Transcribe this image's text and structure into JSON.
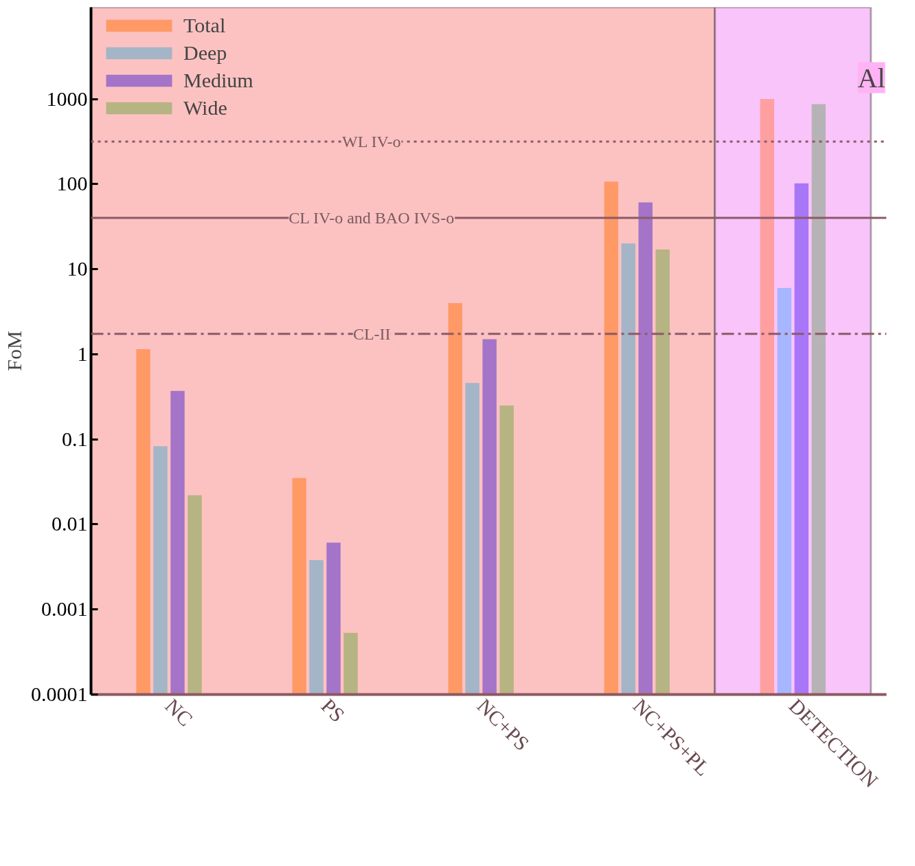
{
  "chart_data": {
    "type": "bar",
    "ylabel": "FoM",
    "categories": [
      "NC",
      "PS",
      "NC+PS",
      "NC+PS+PL",
      "DETECTION"
    ],
    "series": [
      {
        "name": "Total",
        "color": "#ff9966",
        "colors": [
          "#ff9966",
          "#ff9966",
          "#ff9966",
          "#ff9966",
          "#ff9fa0"
        ],
        "values": [
          1.15,
          0.035,
          4.0,
          107,
          1000
        ]
      },
      {
        "name": "Deep",
        "color": "#a3b5c6",
        "colors": [
          "#a3b5c6",
          "#a3b5c6",
          "#a3b5c6",
          "#a3b5c6",
          "#a6b6ff"
        ],
        "values": [
          0.083,
          0.0038,
          0.46,
          20,
          6.0
        ]
      },
      {
        "name": "Medium",
        "color": "#a474c8",
        "colors": [
          "#a474c8",
          "#a474c8",
          "#a474c8",
          "#a474c8",
          "#a777f8"
        ],
        "values": [
          0.37,
          0.0061,
          1.5,
          61,
          102
        ]
      },
      {
        "name": "Wide",
        "color": "#b6b482",
        "colors": [
          "#b6b482",
          "#b6b482",
          "#b6b482",
          "#b6b482",
          "#b6b3b6"
        ],
        "values": [
          0.022,
          0.00053,
          0.25,
          17,
          870
        ]
      }
    ],
    "log": true,
    "ylim": [
      0.0001,
      12000
    ],
    "yticks": [
      0.0001,
      0.001,
      0.01,
      0.1,
      1,
      10,
      100,
      1000
    ],
    "ref_lines": [
      {
        "axis": "y",
        "value": 316,
        "label": "WL IV-o",
        "line_style": "dotted",
        "color": "#8a5a6a"
      },
      {
        "axis": "y",
        "value": 40,
        "label": "CL IV-o and BAO IVS-o",
        "line_style": "solid",
        "color": "#8a5a6a"
      },
      {
        "axis": "y",
        "value": 1.74,
        "label": "CL-II",
        "line_style": "dashed",
        "color": "#8a5a6a"
      }
    ],
    "bands": [
      {
        "axis": "x",
        "from": "NC",
        "to": "NC+PS+PL",
        "color": "#fcc2c2"
      },
      {
        "axis": "x",
        "from": "DETECTION",
        "to": "DETECTION",
        "color": "#f9c4f9"
      }
    ],
    "annotations": [
      "Al"
    ],
    "legend": "top left",
    "grid": false
  }
}
